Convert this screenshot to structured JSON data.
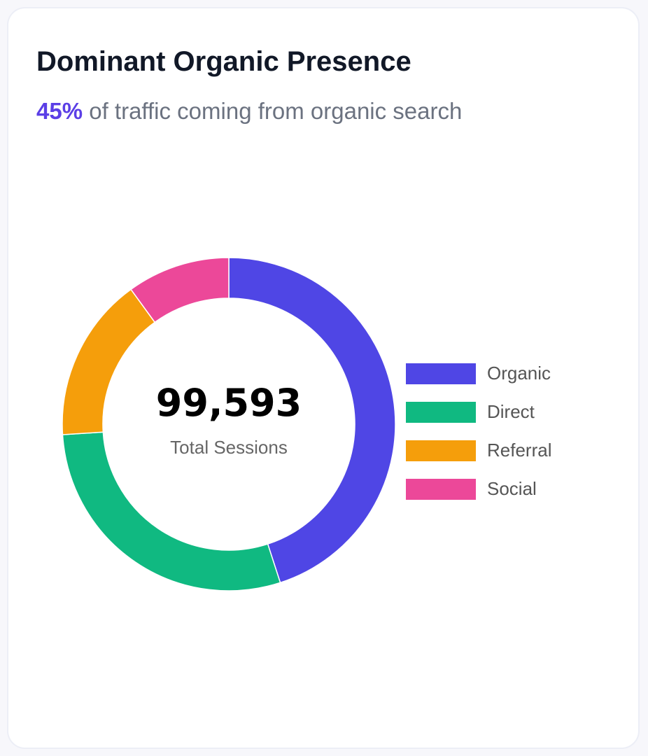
{
  "header": {
    "title": "Dominant Organic Presence",
    "highlight": "45%",
    "subtitle_rest": " of traffic coming from organic search"
  },
  "chart_data": {
    "type": "pie",
    "variant": "doughnut",
    "title": "Dominant Organic Presence",
    "categories": [
      "Organic",
      "Direct",
      "Referral",
      "Social"
    ],
    "values": [
      45,
      29,
      16,
      10
    ],
    "unit": "percent of sessions",
    "colors": [
      "#4f46e5",
      "#10b981",
      "#f59e0b",
      "#ec4899"
    ],
    "center_value": "99,593",
    "center_label": "Total Sessions",
    "legend_position": "right"
  }
}
